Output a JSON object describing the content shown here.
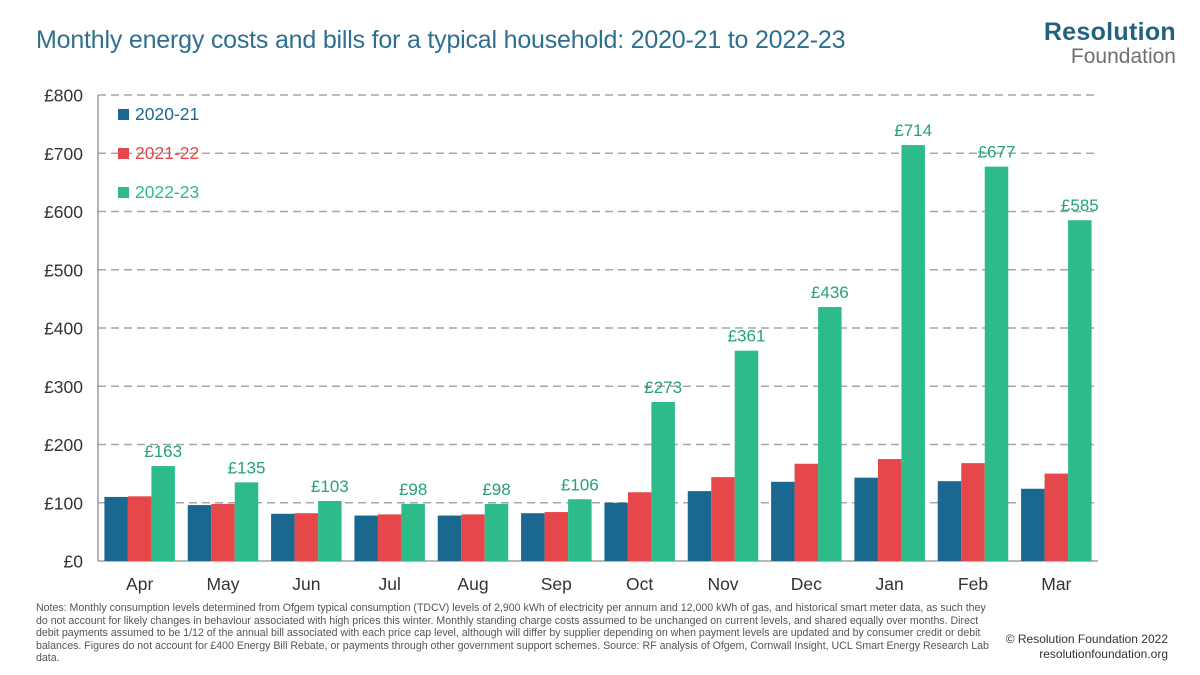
{
  "title": "Monthly energy costs and bills for a typical household: 2020-21 to 2022-23",
  "logo": {
    "line1": "Resolution",
    "line2": "Foundation"
  },
  "chart_data": {
    "type": "bar",
    "title": "Monthly energy costs and bills for a typical household: 2020-21 to 2022-23",
    "xlabel": "",
    "ylabel": "",
    "ylim": [
      0,
      800
    ],
    "yticks": [
      0,
      100,
      200,
      300,
      400,
      500,
      600,
      700,
      800
    ],
    "ytick_labels": [
      "£0",
      "£100",
      "£200",
      "£300",
      "£400",
      "£500",
      "£600",
      "£700",
      "£800"
    ],
    "categories": [
      "Apr",
      "May",
      "Jun",
      "Jul",
      "Aug",
      "Sep",
      "Oct",
      "Nov",
      "Dec",
      "Jan",
      "Feb",
      "Mar"
    ],
    "series": [
      {
        "name": "2020-21",
        "color": "#1a6790",
        "values": [
          110,
          96,
          81,
          78,
          78,
          82,
          100,
          120,
          136,
          143,
          137,
          124
        ]
      },
      {
        "name": "2021-22",
        "color": "#e5474a",
        "values": [
          111,
          98,
          82,
          80,
          80,
          84,
          118,
          144,
          167,
          175,
          168,
          150
        ]
      },
      {
        "name": "2022-23",
        "color": "#2dbb8a",
        "values": [
          163,
          135,
          103,
          98,
          98,
          106,
          273,
          361,
          436,
          714,
          677,
          585
        ]
      }
    ],
    "data_labels": [
      "£163",
      "£135",
      "£103",
      "£98",
      "£98",
      "£106",
      "£273",
      "£361",
      "£436",
      "£714",
      "£677",
      "£585"
    ],
    "labeled_series": "2022-23",
    "label_color": "#25a178",
    "legend_position": "top-left",
    "grid": true
  },
  "notes": "Notes: Monthly consumption levels determined from Ofgem typical consumption (TDCV) levels of 2,900 kWh of electricity per annum and 12,000 kWh of gas, and historical smart meter data, as such they do not account for likely changes in behaviour associated with high prices this winter. Monthly standing charge costs assumed to be unchanged on current levels, and shared equally over months. Direct debit payments assumed to be 1/12 of the annual bill associated with each price cap level, although will differ by supplier depending on when payment levels are updated and by consumer credit or debit balances. Figures do not account for £400 Energy Bill Rebate, or payments through other government support schemes. Source: RF analysis of Ofgem, Cornwall Insight, UCL Smart Energy Research Lab data.",
  "credit": {
    "line1": "© Resolution Foundation 2022",
    "line2": "resolutionfoundation.org"
  }
}
